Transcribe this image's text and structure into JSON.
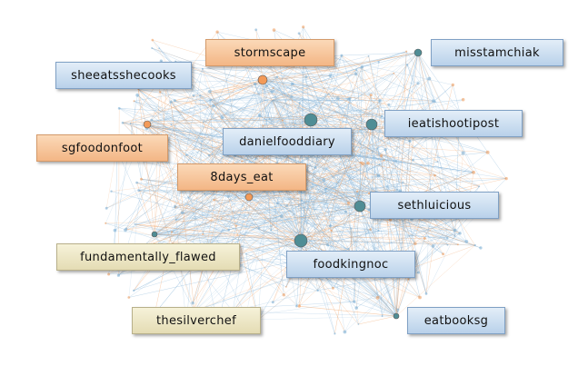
{
  "labels": [
    {
      "id": "stormscape",
      "text": "stormscape",
      "color": "orange"
    },
    {
      "id": "misstamchiak",
      "text": "misstamchiak",
      "color": "blue"
    },
    {
      "id": "sheeatsshecooks",
      "text": "sheeatsshecooks",
      "color": "blue"
    },
    {
      "id": "ieatishootipost",
      "text": "ieatishootipost",
      "color": "blue"
    },
    {
      "id": "danielfooddiary",
      "text": "danielfooddiary",
      "color": "blue"
    },
    {
      "id": "sgfoodonfoot",
      "text": "sgfoodonfoot",
      "color": "orange"
    },
    {
      "id": "8days_eat",
      "text": "8days_eat",
      "color": "orange"
    },
    {
      "id": "sethluicious",
      "text": "sethluicious",
      "color": "blue"
    },
    {
      "id": "fundamentally_flawed",
      "text": "fundamentally_flawed",
      "color": "tan"
    },
    {
      "id": "foodkingnoc",
      "text": "foodkingnoc",
      "color": "blue"
    },
    {
      "id": "thesilverchef",
      "text": "thesilverchef",
      "color": "tan"
    },
    {
      "id": "eatbooksg",
      "text": "eatbooksg",
      "color": "blue"
    }
  ],
  "colors": {
    "edge_blue": "#7fb0d6",
    "edge_orange": "#f0a062",
    "node_teal": "#4f8d95",
    "node_orange": "#f39a58"
  }
}
